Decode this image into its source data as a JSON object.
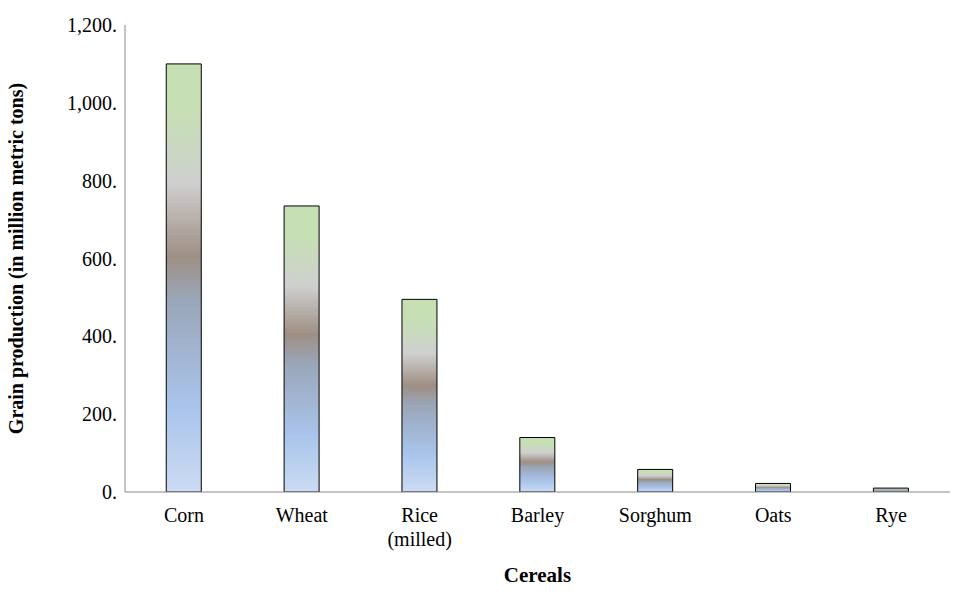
{
  "chart_data": {
    "type": "bar",
    "categories": [
      "Corn",
      "Wheat",
      "Rice (milled)",
      "Barley",
      "Sorghum",
      "Oats",
      "Rye"
    ],
    "values": [
      1100,
      735,
      495,
      140,
      58,
      22,
      10
    ],
    "color": "#a9c4eb",
    "xlabel": "Cereals",
    "ylabel": "Grain production (in million metric tons)",
    "ylim": [
      0,
      1200
    ],
    "yticks": [
      {
        "value": 0,
        "label": "0."
      },
      {
        "value": 200,
        "label": "200."
      },
      {
        "value": 400,
        "label": "400."
      },
      {
        "value": 600,
        "label": "600."
      },
      {
        "value": 800,
        "label": "800."
      },
      {
        "value": 1000,
        "label": "1,000."
      },
      {
        "value": 1200,
        "label": "1,200."
      }
    ],
    "grid": false
  }
}
